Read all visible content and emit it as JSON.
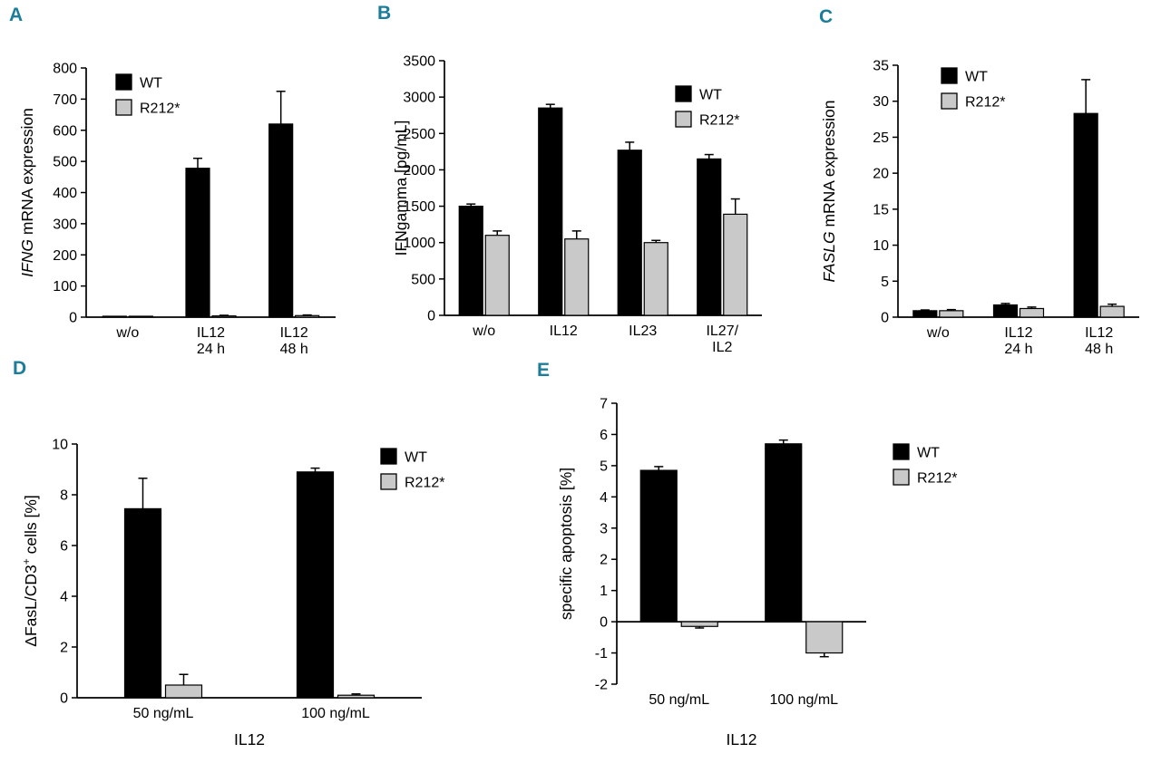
{
  "figure": {
    "background": "#ffffff",
    "panel_label_color": "#1c7d9b",
    "axis_color": "#000000",
    "series_colors": {
      "WT": "#000000",
      "R212*": "#c9c9c9"
    }
  },
  "chart_data": [
    {
      "panel": "A",
      "type": "bar",
      "title": "",
      "ylabel": "IFNG mRNA expression",
      "ylabel_parts": [
        {
          "text": "IFNG",
          "italic": true
        },
        {
          "text": " mRNA expression"
        }
      ],
      "xlabel": "",
      "categories": [
        [
          "w/o"
        ],
        [
          "IL12",
          "24 h"
        ],
        [
          "IL12",
          "48 h"
        ]
      ],
      "series": [
        {
          "name": "WT",
          "color": "#000000",
          "values": [
            3,
            478,
            620
          ],
          "errors": [
            0,
            32,
            105
          ]
        },
        {
          "name": "R212*",
          "color": "#c9c9c9",
          "values": [
            3,
            4,
            5
          ],
          "errors": [
            0,
            2,
            2
          ]
        }
      ],
      "ylim": [
        0,
        800
      ],
      "ytick_step": 100,
      "grid": false,
      "legend_position": "inside-top-left",
      "legend_entries": [
        "WT",
        "R212*"
      ]
    },
    {
      "panel": "B",
      "type": "bar",
      "title": "",
      "ylabel": "IFNgamma [pg/mL]",
      "ylabel_parts": [
        {
          "text": "IFNgamma [pg/mL]"
        }
      ],
      "xlabel": "",
      "categories": [
        [
          "w/o"
        ],
        [
          "IL12"
        ],
        [
          "IL23"
        ],
        [
          "IL27/",
          "IL2"
        ]
      ],
      "series": [
        {
          "name": "WT",
          "color": "#000000",
          "values": [
            1500,
            2850,
            2270,
            2150
          ],
          "errors": [
            30,
            50,
            110,
            60
          ]
        },
        {
          "name": "R212*",
          "color": "#c9c9c9",
          "values": [
            1100,
            1050,
            1000,
            1390
          ],
          "errors": [
            60,
            110,
            30,
            210
          ]
        }
      ],
      "ylim": [
        0,
        3500
      ],
      "ytick_step": 500,
      "grid": false,
      "legend_position": "inside-top-right",
      "legend_entries": [
        "WT",
        "R212*"
      ]
    },
    {
      "panel": "C",
      "type": "bar",
      "title": "",
      "ylabel": "FASLG mRNA expression",
      "ylabel_parts": [
        {
          "text": "FASLG",
          "italic": true
        },
        {
          "text": " mRNA expression"
        }
      ],
      "xlabel": "",
      "categories": [
        [
          "w/o"
        ],
        [
          "IL12",
          "24 h"
        ],
        [
          "IL12",
          "48 h"
        ]
      ],
      "series": [
        {
          "name": "WT",
          "color": "#000000",
          "values": [
            0.9,
            1.7,
            28.3
          ],
          "errors": [
            0.1,
            0.2,
            4.7
          ]
        },
        {
          "name": "R212*",
          "color": "#c9c9c9",
          "values": [
            0.9,
            1.2,
            1.5
          ],
          "errors": [
            0.15,
            0.2,
            0.3
          ]
        }
      ],
      "ylim": [
        0,
        35
      ],
      "ytick_step": 5,
      "grid": false,
      "legend_position": "inside-top-left",
      "legend_entries": [
        "WT",
        "R212*"
      ]
    },
    {
      "panel": "D",
      "type": "bar",
      "title": "",
      "ylabel": "ΔFasL/CD3+ cells [%]",
      "ylabel_parts": [
        {
          "text": "ΔFasL/CD3"
        },
        {
          "text": "+",
          "sup": true
        },
        {
          "text": " cells [%]"
        }
      ],
      "xlabel": "IL12",
      "categories": [
        [
          "50 ng/mL"
        ],
        [
          "100 ng/mL"
        ]
      ],
      "series": [
        {
          "name": "WT",
          "color": "#000000",
          "values": [
            7.45,
            8.9
          ],
          "errors": [
            1.2,
            0.15
          ]
        },
        {
          "name": "R212*",
          "color": "#c9c9c9",
          "values": [
            0.5,
            0.1
          ],
          "errors": [
            0.42,
            0.05
          ]
        }
      ],
      "ylim": [
        0,
        10
      ],
      "ytick_step": 2,
      "grid": false,
      "legend_position": "outside-right-top",
      "legend_entries": [
        "WT",
        "R212*"
      ]
    },
    {
      "panel": "E",
      "type": "bar",
      "title": "",
      "ylabel": "specific apoptosis [%]",
      "ylabel_parts": [
        {
          "text": "specific apoptosis [%]"
        }
      ],
      "xlabel": "IL12",
      "categories": [
        [
          "50 ng/mL"
        ],
        [
          "100 ng/mL"
        ]
      ],
      "series": [
        {
          "name": "WT",
          "color": "#000000",
          "values": [
            4.85,
            5.7
          ],
          "errors": [
            0.12,
            0.12
          ]
        },
        {
          "name": "R212*",
          "color": "#c9c9c9",
          "values": [
            -0.15,
            -1.0
          ],
          "errors": [
            0.05,
            0.12
          ]
        }
      ],
      "ylim": [
        -2,
        7
      ],
      "ytick_step": 1,
      "grid": false,
      "legend_position": "outside-right-top",
      "legend_entries": [
        "WT",
        "R212*"
      ]
    }
  ]
}
